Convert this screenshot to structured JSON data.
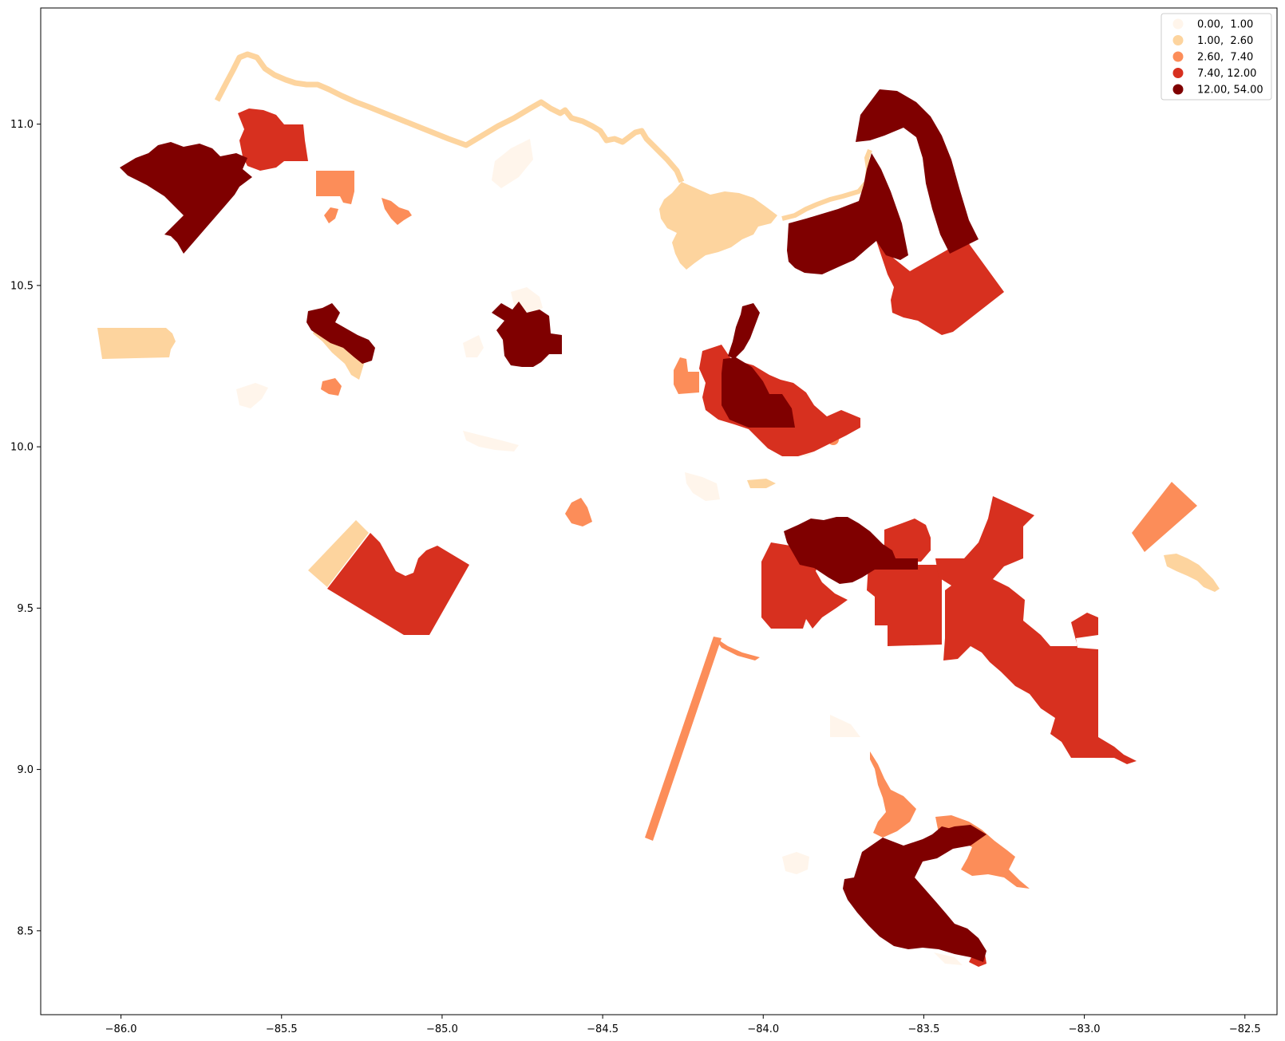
{
  "chart_data": {
    "type": "choropleth",
    "title": "",
    "xlabel": "",
    "ylabel": "",
    "xlim": [
      -86.25,
      -82.4
    ],
    "ylim": [
      8.24,
      11.36
    ],
    "x_ticks": [
      "−86.0",
      "−85.5",
      "−85.0",
      "−84.5",
      "−84.0",
      "−83.5",
      "−83.0",
      "−82.5"
    ],
    "y_ticks": [
      "8.5",
      "9.0",
      "9.5",
      "10.0",
      "10.5",
      "11.0"
    ],
    "x_tick_values": [
      -86.0,
      -85.5,
      -85.0,
      -84.5,
      -84.0,
      -83.5,
      -83.0,
      -82.5
    ],
    "y_tick_values": [
      8.5,
      9.0,
      9.5,
      10.0,
      10.5,
      11.0
    ],
    "grid": false,
    "legend_position": "top-right",
    "legend": [
      {
        "label": "0.00,  1.00",
        "color": "#fff5eb"
      },
      {
        "label": "1.00,  2.60",
        "color": "#fdd49e"
      },
      {
        "label": "2.60,  7.40",
        "color": "#fc8d59"
      },
      {
        "label": "7.40, 12.00",
        "color": "#d7301f"
      },
      {
        "label": "12.00, 54.00",
        "color": "#7f0000"
      }
    ]
  }
}
